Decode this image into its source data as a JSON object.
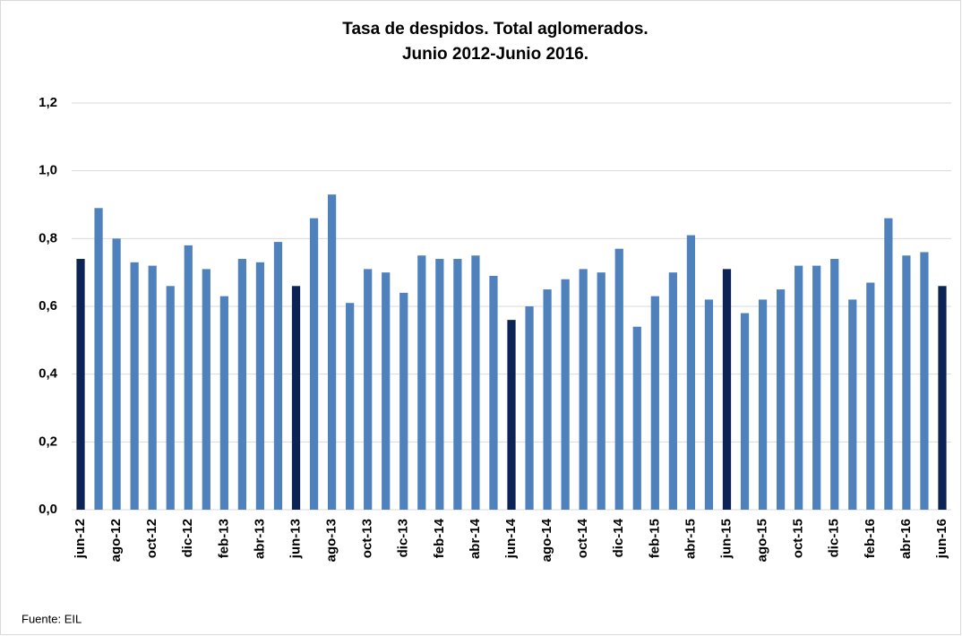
{
  "chart_data": {
    "type": "bar",
    "title": "Tasa de despidos. Total aglomerados.",
    "subtitle": "Junio 2012-Junio 2016.",
    "source": "Fuente: EIL",
    "categories": [
      "jun-12",
      null,
      "ago-12",
      null,
      "oct-12",
      null,
      "dic-12",
      null,
      "feb-13",
      null,
      "abr-13",
      null,
      "jun-13",
      null,
      "ago-13",
      null,
      "oct-13",
      null,
      "dic-13",
      null,
      "feb-14",
      null,
      "abr-14",
      null,
      "jun-14",
      null,
      "ago-14",
      null,
      "oct-14",
      null,
      "dic-14",
      null,
      "feb-15",
      null,
      "abr-15",
      null,
      "jun-15",
      null,
      "ago-15",
      null,
      "oct-15",
      null,
      "dic-15",
      null,
      "feb-16",
      null,
      "abr-16",
      null,
      "jun-16"
    ],
    "values": [
      0.74,
      0.89,
      0.8,
      0.73,
      0.72,
      0.66,
      0.78,
      0.71,
      0.63,
      0.74,
      0.73,
      0.79,
      0.66,
      0.86,
      0.93,
      0.61,
      0.71,
      0.7,
      0.64,
      0.75,
      0.74,
      0.74,
      0.75,
      0.69,
      0.56,
      0.6,
      0.65,
      0.68,
      0.71,
      0.7,
      0.77,
      0.54,
      0.63,
      0.7,
      0.81,
      0.62,
      0.71,
      0.58,
      0.62,
      0.65,
      0.72,
      0.72,
      0.74,
      0.62,
      0.67,
      0.86,
      0.75,
      0.76,
      0.66
    ],
    "colors": [
      "#0c2356",
      "#4f81bd",
      "#4f81bd",
      "#4f81bd",
      "#4f81bd",
      "#4f81bd",
      "#4f81bd",
      "#4f81bd",
      "#4f81bd",
      "#4f81bd",
      "#4f81bd",
      "#4f81bd",
      "#0c2356",
      "#4f81bd",
      "#4f81bd",
      "#4f81bd",
      "#4f81bd",
      "#4f81bd",
      "#4f81bd",
      "#4f81bd",
      "#4f81bd",
      "#4f81bd",
      "#4f81bd",
      "#4f81bd",
      "#0c2356",
      "#4f81bd",
      "#4f81bd",
      "#4f81bd",
      "#4f81bd",
      "#4f81bd",
      "#4f81bd",
      "#4f81bd",
      "#4f81bd",
      "#4f81bd",
      "#4f81bd",
      "#4f81bd",
      "#0c2356",
      "#4f81bd",
      "#4f81bd",
      "#4f81bd",
      "#4f81bd",
      "#4f81bd",
      "#4f81bd",
      "#4f81bd",
      "#4f81bd",
      "#4f81bd",
      "#4f81bd",
      "#4f81bd",
      "#0c2356"
    ],
    "ylim": [
      0,
      1.2
    ],
    "yticks": [
      {
        "value": 0,
        "label": "0,0"
      },
      {
        "value": 0.2,
        "label": "0,2"
      },
      {
        "value": 0.4,
        "label": "0,4"
      },
      {
        "value": 0.6,
        "label": "0,6"
      },
      {
        "value": 0.8,
        "label": "0,8"
      },
      {
        "value": 1.0,
        "label": "1,0"
      },
      {
        "value": 1.2,
        "label": "1,2"
      }
    ],
    "grid": true
  }
}
